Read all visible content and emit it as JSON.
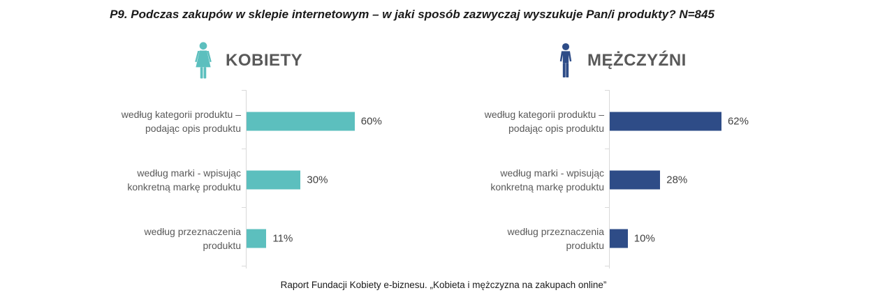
{
  "title": "P9. Podczas zakupów w sklepie internetowym – w jaki sposób zazwyczaj wyszukuje Pan/i produkty? N=845",
  "footer": "Raport Fundacji Kobiety e-biznesu. „Kobieta i mężczyzna na zakupach online”",
  "colors": {
    "women_accent": "#5CBFBE",
    "men_accent": "#2E4C87",
    "category_label": "#595959",
    "value_label": "#404040",
    "axis_line": "#D9D9D9",
    "header_text": "#595959"
  },
  "chart_data": [
    {
      "type": "bar",
      "orientation": "horizontal",
      "group_label": "KOBIETY",
      "icon": "woman-icon",
      "bar_color": "#5CBFBE",
      "categories": [
        "według kategorii produktu –\npodając opis produktu",
        "według marki - wpisując\nkonkretną markę produktu",
        "według przeznaczenia\nproduktu"
      ],
      "values": [
        60,
        30,
        11
      ],
      "value_labels": [
        "60%",
        "30%",
        "11%"
      ],
      "xlim": [
        0,
        100
      ],
      "grid": false,
      "legend": "none"
    },
    {
      "type": "bar",
      "orientation": "horizontal",
      "group_label": "MĘŻCZYŹNI",
      "icon": "man-icon",
      "bar_color": "#2E4C87",
      "categories": [
        "według kategorii produktu –\npodając opis produktu",
        "według marki - wpisując\nkonkretną markę produktu",
        "według przeznaczenia\nproduktu"
      ],
      "values": [
        62,
        28,
        10
      ],
      "value_labels": [
        "62%",
        "28%",
        "10%"
      ],
      "xlim": [
        0,
        100
      ],
      "grid": false,
      "legend": "none"
    }
  ]
}
